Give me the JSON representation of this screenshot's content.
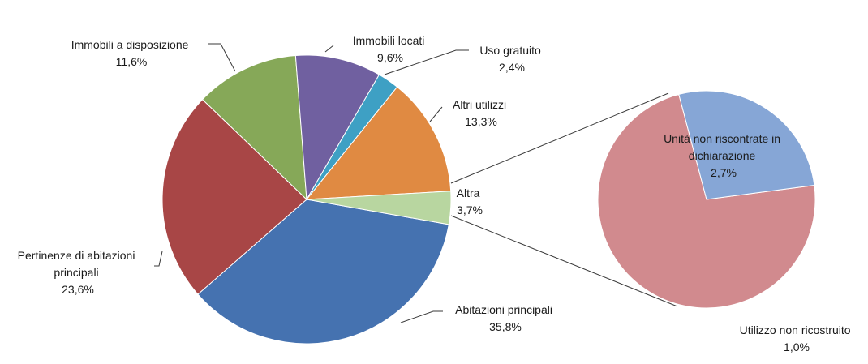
{
  "chart_data": {
    "type": "pie",
    "title": "",
    "main_pie": {
      "slices": [
        {
          "name": "Abitazioni principali",
          "value": 35.8,
          "label": "35,8%",
          "color": "#4572b0"
        },
        {
          "name": "Pertinenze di abitazioni principali",
          "value": 23.6,
          "label": "23,6%",
          "color": "#a84646"
        },
        {
          "name": "Immobili a disposizione",
          "value": 11.6,
          "label": "11,6%",
          "color": "#86a858"
        },
        {
          "name": "Immobili locati",
          "value": 9.6,
          "label": "9,6%",
          "color": "#7060a0"
        },
        {
          "name": "Uso gratuito",
          "value": 2.4,
          "label": "2,4%",
          "color": "#3ea0c4"
        },
        {
          "name": "Altri utilizzi",
          "value": 13.3,
          "label": "13,3%",
          "color": "#e08a42"
        },
        {
          "name": "Altra",
          "value": 3.7,
          "label": "3,7%",
          "color": "#b8d6a0"
        }
      ]
    },
    "secondary_pie": {
      "expands": "Altra",
      "slices": [
        {
          "name": "Unità non riscontrate in dichiarazione",
          "value": 2.7,
          "label": "2,7%",
          "color": "#d18a8e"
        },
        {
          "name": "Utilizzo non ricostruito",
          "value": 1.0,
          "label": "1,0%",
          "color": "#86a6d6"
        }
      ]
    },
    "text": {
      "abitazioni": [
        "Abitazioni principali",
        "35,8%"
      ],
      "pertinenze": [
        "Pertinenze di abitazioni",
        "principali",
        "23,6%"
      ],
      "disposizione": [
        "Immobili a disposizione",
        "11,6%"
      ],
      "locati": [
        "Immobili locati",
        "9,6%"
      ],
      "gratuito": [
        "Uso gratuito",
        "2,4%"
      ],
      "altri": [
        "Altri utilizzi",
        "13,3%"
      ],
      "altra": [
        "Altra",
        "3,7%"
      ],
      "unita": [
        "Unità non riscontrate in",
        "dichiarazione",
        "2,7%"
      ],
      "utilizzo": [
        "Utilizzo non ricostruito",
        "1,0%"
      ]
    }
  }
}
